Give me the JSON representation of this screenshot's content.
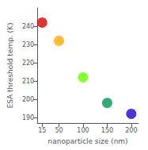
{
  "chart_data": {
    "type": "scatter",
    "x": [
      15,
      50,
      100,
      150,
      200
    ],
    "values": [
      242,
      232,
      212,
      198,
      192
    ],
    "colors": [
      "#dd0000",
      "#ffaa00",
      "#66ff00",
      "#009955",
      "#2200cc"
    ],
    "xlabel": "nanoparticle size (nm)",
    "ylabel": "ESA threshold temp. (K)",
    "xlim": [
      5,
      215
    ],
    "ylim": [
      187,
      250
    ],
    "xticks": [
      15,
      50,
      100,
      150,
      200
    ],
    "yticks": [
      190,
      200,
      210,
      220,
      230,
      240
    ],
    "grid": false
  }
}
